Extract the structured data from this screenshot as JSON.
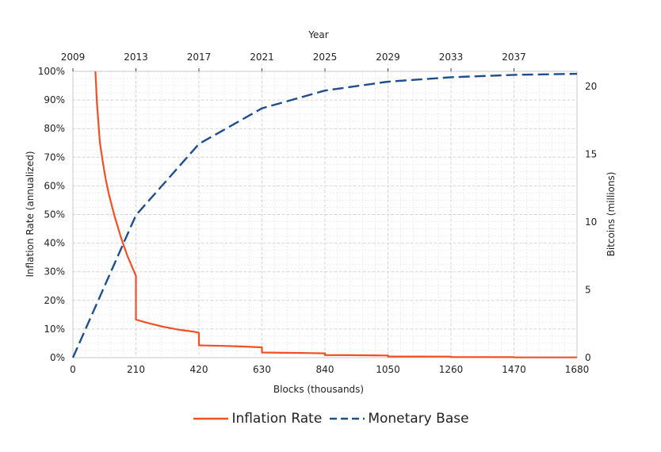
{
  "chart_data": {
    "type": "line",
    "top_axis": {
      "label": "Year",
      "tick_values": [
        0,
        210,
        420,
        630,
        840,
        1050,
        1260,
        1470
      ],
      "tick_labels": [
        "2009",
        "2013",
        "2017",
        "2021",
        "2025",
        "2029",
        "2033",
        "2037"
      ]
    },
    "x_axis": {
      "label": "Blocks (thousands)",
      "ticks": [
        0,
        210,
        420,
        630,
        840,
        1050,
        1260,
        1470,
        1680
      ],
      "range": [
        0,
        1680
      ]
    },
    "y_left": {
      "label": "Inflation Rate (annualized)",
      "ticks": [
        "0%",
        "10%",
        "20%",
        "30%",
        "40%",
        "50%",
        "60%",
        "70%",
        "80%",
        "90%",
        "100%"
      ],
      "range": [
        0,
        100
      ]
    },
    "y_right": {
      "label": "Bitcoins (millions)",
      "ticks": [
        "0",
        "5",
        "10",
        "15",
        "20"
      ],
      "range": [
        0,
        21.1
      ]
    },
    "grid": true,
    "legend_position": "bottom",
    "series": [
      {
        "name": "Inflation Rate",
        "axis": "left",
        "color": "#f25022",
        "style": "solid",
        "x": [
          75,
          80,
          90,
          100,
          110,
          120,
          130,
          140,
          150,
          160,
          170,
          180,
          190,
          200,
          209.9,
          210,
          250,
          300,
          350,
          400,
          419.9,
          420,
          500,
          560,
          629.9,
          630,
          700,
          780,
          839.9,
          840,
          920,
          1000,
          1049.9,
          1050,
          1155,
          1259.9,
          1260,
          1365,
          1469.9,
          1470,
          1575,
          1680
        ],
        "y": [
          100,
          89,
          75,
          68,
          62,
          57,
          53,
          49,
          45.5,
          42,
          39,
          36,
          33.5,
          31,
          28.6,
          13.3,
          12.1,
          10.8,
          9.8,
          9.1,
          8.7,
          4.3,
          4.1,
          3.9,
          3.6,
          1.8,
          1.7,
          1.6,
          1.5,
          0.9,
          0.85,
          0.8,
          0.75,
          0.4,
          0.38,
          0.36,
          0.2,
          0.19,
          0.18,
          0.1,
          0.09,
          0.09
        ]
      },
      {
        "name": "Monetary Base",
        "axis": "right",
        "color": "#1f4e8c",
        "style": "dashed",
        "x": [
          0,
          210,
          420,
          630,
          840,
          1050,
          1260,
          1470,
          1680
        ],
        "y": [
          0,
          10.5,
          15.75,
          18.375,
          19.6875,
          20.34,
          20.67,
          20.84,
          20.92
        ]
      }
    ]
  }
}
